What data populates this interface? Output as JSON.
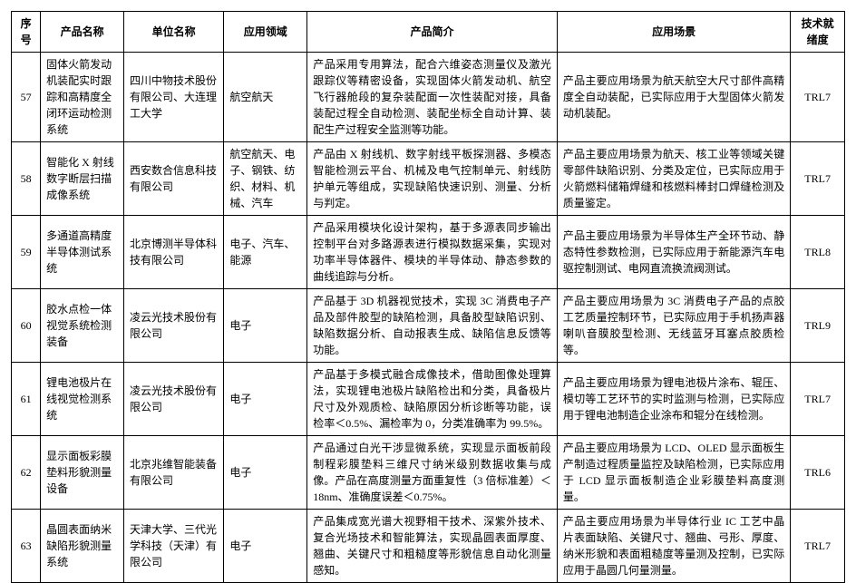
{
  "table": {
    "columns": [
      "序号",
      "产品名称",
      "单位名称",
      "应用领域",
      "产品简介",
      "应用场景",
      "技术就绪度"
    ],
    "rows": [
      {
        "idx": "57",
        "name": "固体火箭发动机装配实时跟踪和高精度全闭环运动检测系统",
        "unit": "四川中物技术股份有限公司、大连理工大学",
        "field": "航空航天",
        "summary": "产品采用专用算法，配合六维姿态测量仪及激光跟踪仪等精密设备，实现固体火箭发动机、航空飞行器舱段的复杂装配面一次性装配对接，具备装配过程全自动检测、装配坐标全自动计算、装配生产过程安全监测等功能。",
        "scenario": "产品主要应用场景为航天航空大尺寸部件高精度全自动装配，已实际应用于大型固体火箭发动机装配。",
        "trl": "TRL7"
      },
      {
        "idx": "58",
        "name": "智能化 X 射线数字断层扫描成像系统",
        "unit": "西安数合信息科技有限公司",
        "field": "航空航天、电子、钢铁、纺织、材料、机械、汽车",
        "summary": "产品由 X 射线机、数字射线平板探测器、多模态智能检测云平台、机械及电气控制单元、射线防护单元等组成，实现缺陷快速识别、测量、分析与判定。",
        "scenario": "产品主要应用场景为航天、核工业等领域关键零部件缺陷识别、分类及定位，已实际应用于火箭燃料储箱焊缝和核燃料棒封口焊缝检测及质量鉴定。",
        "trl": "TRL7"
      },
      {
        "idx": "59",
        "name": "多通道高精度半导体测试系统",
        "unit": "北京博测半导体科技有限公司",
        "field": "电子、汽车、能源",
        "summary": "产品采用模块化设计架构，基于多源表同步输出控制平台对多路源表进行模拟数据采集，实现对功率半导体器件、模块的半导体动、静态参数的曲线追踪与分析。",
        "scenario": "产品主要应用场景为半导体生产全环节动、静态特性参数检测，已实际应用于新能源汽车电驱控制测试、电网直流换流阀测试。",
        "trl": "TRL8"
      },
      {
        "idx": "60",
        "name": "胶水点检一体视觉系统检测装备",
        "unit": "凌云光技术股份有限公司",
        "field": "电子",
        "summary": "产品基于 3D 机器视觉技术，实现 3C 消费电子产品及部件胶型的缺陷检测，具备胶型缺陷识别、缺陷数据分析、自动报表生成、缺陷信息反馈等功能。",
        "scenario": "产品主要应用场景为 3C 消费电子产品的点胶工艺质量控制环节，已实际应用于手机扬声器喇叭音膜胶型检测、无线蓝牙耳塞点胶质检等。",
        "trl": "TRL9"
      },
      {
        "idx": "61",
        "name": "锂电池极片在线视觉检测系统",
        "unit": "凌云光技术股份有限公司",
        "field": "电子",
        "summary": "产品基于多模式融合成像技术，借助图像处理算法，实现锂电池极片缺陷检出和分类，具备极片尺寸及外观质检、缺陷原因分析诊断等功能，误检率＜0.5%、漏检率为 0，分类准确率为 99.5%。",
        "scenario": "产品主要应用场景为锂电池极片涂布、辊压、模切等工艺环节的实时监测与检测，已实际应用于锂电池制造企业涂布和辊分在线检测。",
        "trl": "TRL7"
      },
      {
        "idx": "62",
        "name": "显示面板彩膜垫料形貌测量设备",
        "unit": "北京兆维智能装备有限公司",
        "field": "电子",
        "summary": "产品通过白光干涉显微系统，实现显示面板前段制程彩膜垫料三维尺寸纳米级别数据收集与成像。产品在高度测量方面重复性（3 倍标准差）＜18nm、准确度误差＜0.75%。",
        "scenario": "产品主要应用场景为 LCD、OLED 显示面板生产制造过程质量监控及缺陷检测，已实际应用于 LCD 显示面板制造企业彩膜垫料高度测量。",
        "trl": "TRL6"
      },
      {
        "idx": "63",
        "name": "晶圆表面纳米缺陷形貌测量系统",
        "unit": "天津大学、三代光学科技（天津）有限公司",
        "field": "电子",
        "summary": "产品集成宽光谱大视野相干技术、深紫外技术、复合光场技术和智能算法，实现晶圆表面厚度、翘曲、关键尺寸和粗糙度等形貌信息自动化测量感知。",
        "scenario": "产品主要应用场景为半导体行业 IC 工艺中晶片表面缺陷、关键尺寸、翘曲、弓形、厚度、纳米形貌和表面粗糙度等量测及控制，已实际应用于晶圆几何量测量。",
        "trl": "TRL7"
      }
    ],
    "styling": {
      "border_color": "#000000",
      "background_color": "#ffffff",
      "text_color": "#000000",
      "header_font_weight": 700,
      "body_font_size": 12,
      "font_family": "SimSun"
    }
  }
}
